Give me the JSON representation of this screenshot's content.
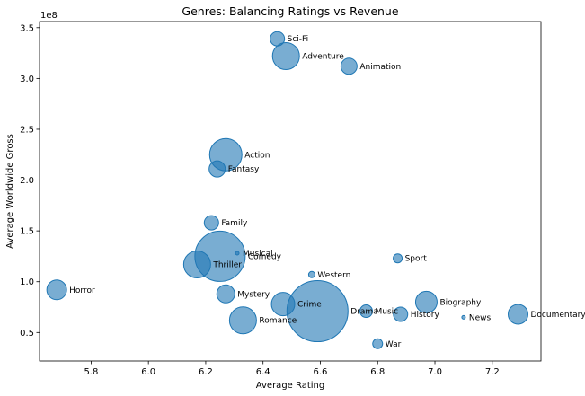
{
  "chart_data": {
    "type": "scatter",
    "title": "Genres: Balancing Ratings vs Revenue",
    "xlabel": "Average Rating",
    "ylabel": "Average Worldwide Gross",
    "y_scale_label": "1e8",
    "xlim": [
      5.62,
      7.37
    ],
    "ylim": [
      0.22,
      3.56
    ],
    "x_ticks": [
      5.8,
      6.0,
      6.2,
      6.4,
      6.6,
      6.8,
      7.0,
      7.2
    ],
    "x_tick_labels": [
      "5.8",
      "6.0",
      "6.2",
      "6.4",
      "6.6",
      "6.8",
      "7.0",
      "7.2"
    ],
    "y_ticks": [
      0.5,
      1.0,
      1.5,
      2.0,
      2.5,
      3.0,
      3.5
    ],
    "y_tick_labels": [
      "0.5",
      "1.0",
      "1.5",
      "2.0",
      "2.5",
      "3.0",
      "3.5"
    ],
    "grid": false,
    "marker_color": "#1f77b4",
    "marker_alpha": 0.6,
    "points": [
      {
        "label": "Sci-Fi",
        "x": 6.45,
        "y": 3.39,
        "size": 8
      },
      {
        "label": "Adventure",
        "x": 6.48,
        "y": 3.22,
        "size": 15
      },
      {
        "label": "Animation",
        "x": 6.7,
        "y": 3.12,
        "size": 9
      },
      {
        "label": "Action",
        "x": 6.27,
        "y": 2.25,
        "size": 18
      },
      {
        "label": "Fantasy",
        "x": 6.24,
        "y": 2.11,
        "size": 9
      },
      {
        "label": "Family",
        "x": 6.22,
        "y": 1.58,
        "size": 8
      },
      {
        "label": "Musical",
        "x": 6.31,
        "y": 1.28,
        "size": 2
      },
      {
        "label": "Comedy",
        "x": 6.25,
        "y": 1.25,
        "size": 28
      },
      {
        "label": "Thriller",
        "x": 6.17,
        "y": 1.17,
        "size": 15
      },
      {
        "label": "Sport",
        "x": 6.87,
        "y": 1.23,
        "size": 5
      },
      {
        "label": "Western",
        "x": 6.57,
        "y": 1.07,
        "size": 3.5
      },
      {
        "label": "Horror",
        "x": 5.68,
        "y": 0.92,
        "size": 11
      },
      {
        "label": "Mystery",
        "x": 6.27,
        "y": 0.88,
        "size": 10
      },
      {
        "label": "Crime",
        "x": 6.47,
        "y": 0.78,
        "size": 13
      },
      {
        "label": "Biography",
        "x": 6.97,
        "y": 0.8,
        "size": 12
      },
      {
        "label": "Drama",
        "x": 6.59,
        "y": 0.71,
        "size": 34
      },
      {
        "label": "Music",
        "x": 6.76,
        "y": 0.71,
        "size": 7
      },
      {
        "label": "History",
        "x": 6.88,
        "y": 0.68,
        "size": 8
      },
      {
        "label": "News",
        "x": 7.1,
        "y": 0.65,
        "size": 2
      },
      {
        "label": "Documentary",
        "x": 7.29,
        "y": 0.68,
        "size": 11
      },
      {
        "label": "Romance",
        "x": 6.33,
        "y": 0.62,
        "size": 15
      },
      {
        "label": "War",
        "x": 6.8,
        "y": 0.39,
        "size": 5.5
      }
    ]
  }
}
